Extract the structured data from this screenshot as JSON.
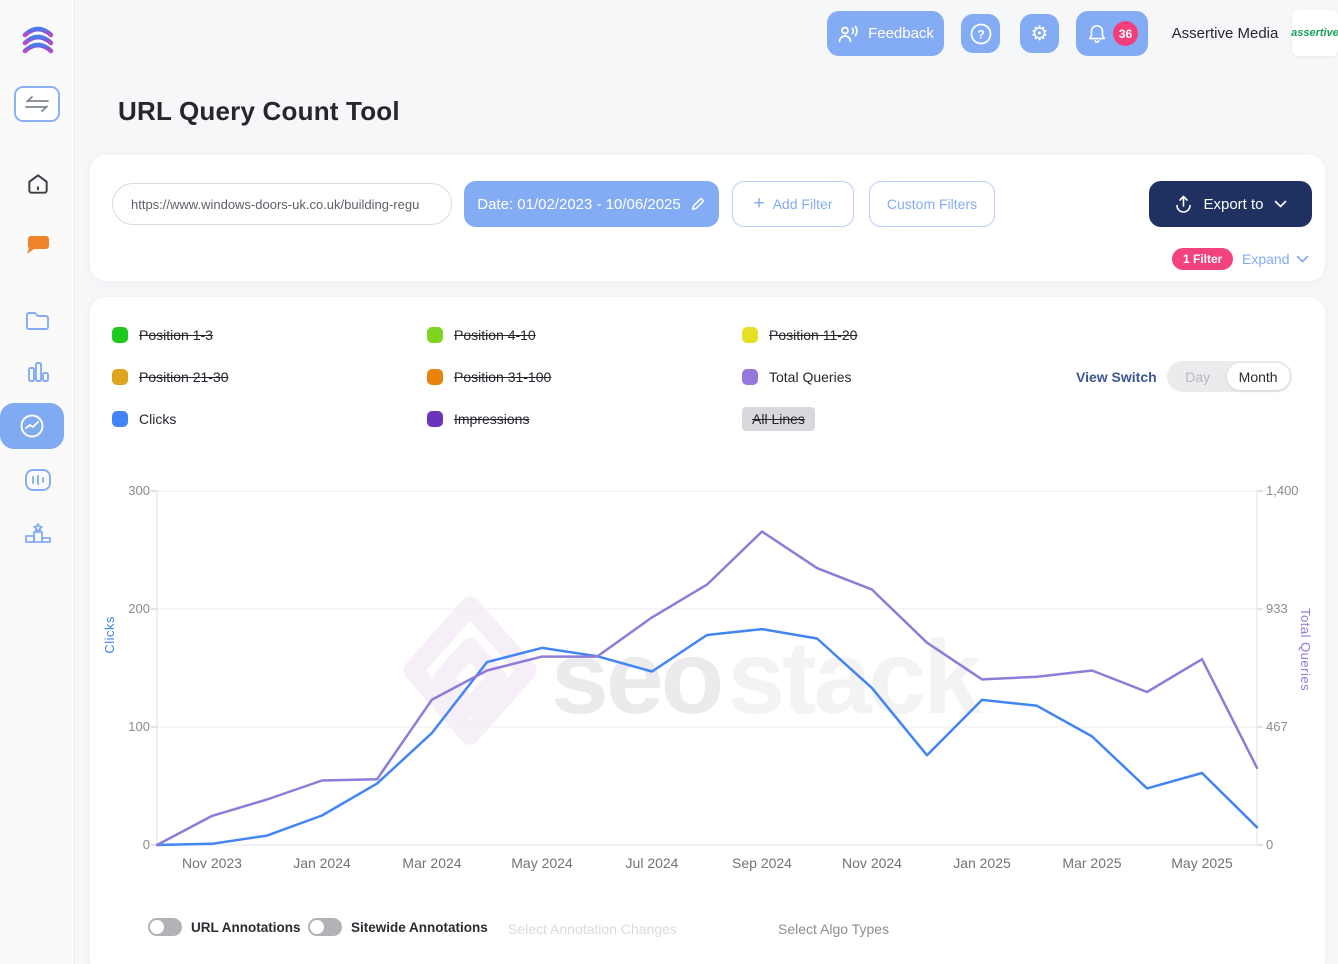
{
  "header": {
    "feedback_label": "Feedback",
    "notification_count": "36",
    "account_name": "Assertive Media",
    "account_logo_text": "assertive",
    "icons": [
      "feedback-voice-icon",
      "help-icon",
      "gear-icon",
      "bell-icon"
    ]
  },
  "sidebar": {
    "icons": [
      "app-logo",
      "swap-arrows-icon",
      "home-icon",
      "chat-icon",
      "folder-icon",
      "bar-chart-icon",
      "line-chart-icon",
      "equalizer-icon",
      "podium-icon"
    ],
    "active_item": "line-chart"
  },
  "page": {
    "title": "URL Query Count Tool"
  },
  "filters": {
    "url_value": "https://www.windows-doors-uk.co.uk/building-regu",
    "date_label": "Date: 01/02/2023 - 10/06/2025",
    "add_filter_label": "Add Filter",
    "custom_filters_label": "Custom Filters",
    "export_label": "Export to",
    "filter_count_badge": "1 Filter",
    "expand_label": "Expand",
    "icons": [
      "pencil-icon",
      "plus-icon",
      "export-up-icon",
      "chevron-down-icon"
    ]
  },
  "legend": {
    "items": [
      {
        "label": "Position 1-3",
        "color": "#1ec91e",
        "struck": true
      },
      {
        "label": "Position 4-10",
        "color": "#7fd321",
        "struck": true
      },
      {
        "label": "Position 11-20",
        "color": "#e5df25",
        "struck": true
      },
      {
        "label": "Position 21-30",
        "color": "#dfa41e",
        "struck": true
      },
      {
        "label": "Position 31-100",
        "color": "#e8830d",
        "struck": true
      },
      {
        "label": "Total Queries",
        "color": "#9678dd",
        "struck": false
      },
      {
        "label": "Clicks",
        "color": "#4285f4",
        "struck": false
      },
      {
        "label": "Impressions",
        "color": "#6a35bd",
        "struck": true
      },
      {
        "label": "All Lines",
        "color": "#d8d8dd",
        "struck": true,
        "badge": true
      }
    ]
  },
  "view_switch": {
    "label": "View Switch",
    "options": [
      "Day",
      "Month"
    ],
    "selected": "Month"
  },
  "chart_data": {
    "type": "line",
    "x": [
      "Oct 2023",
      "Nov 2023",
      "Dec 2023",
      "Jan 2024",
      "Feb 2024",
      "Mar 2024",
      "Apr 2024",
      "May 2024",
      "Jun 2024",
      "Jul 2024",
      "Aug 2024",
      "Sep 2024",
      "Oct 2024",
      "Nov 2024",
      "Dec 2024",
      "Jan 2025",
      "Feb 2025",
      "Mar 2025",
      "Apr 2025",
      "May 2025",
      "Jun 2025"
    ],
    "x_tick_indices": [
      1,
      3,
      5,
      7,
      9,
      11,
      13,
      15,
      17,
      19
    ],
    "series": [
      {
        "name": "Clicks",
        "axis": "left",
        "color": "#4285f4",
        "values": [
          0,
          1,
          8,
          25,
          52,
          95,
          155,
          167,
          160,
          147,
          178,
          183,
          175,
          133,
          76,
          123,
          118,
          92,
          48,
          61,
          15
        ]
      },
      {
        "name": "Total Queries",
        "axis": "right",
        "color": "#8e7cd8",
        "values": [
          0,
          115,
          180,
          255,
          260,
          575,
          690,
          745,
          745,
          900,
          1030,
          1240,
          1095,
          1010,
          800,
          655,
          665,
          690,
          605,
          735,
          305
        ]
      }
    ],
    "left_axis": {
      "label": "Clicks",
      "color": "#4285f4",
      "ticks": [
        0,
        100,
        200,
        300
      ],
      "range": [
        0,
        300
      ]
    },
    "right_axis": {
      "label": "Total Queries",
      "color": "#9678dd",
      "tick_labels": [
        "0",
        "467",
        "933",
        "1,400"
      ],
      "range": [
        0,
        1400
      ]
    },
    "grid": "horizontal",
    "legend_position": "top",
    "watermark_bold": "seo",
    "watermark_light": "stack"
  },
  "annotations_bar": {
    "url_annotations_label": "URL Annotations",
    "url_annotations_on": false,
    "sitewide_annotations_label": "Sitewide Annotations",
    "sitewide_annotations_on": false,
    "select_annotation_changes_label": "Select Annotation Changes",
    "select_algo_types_label": "Select Algo Types"
  }
}
